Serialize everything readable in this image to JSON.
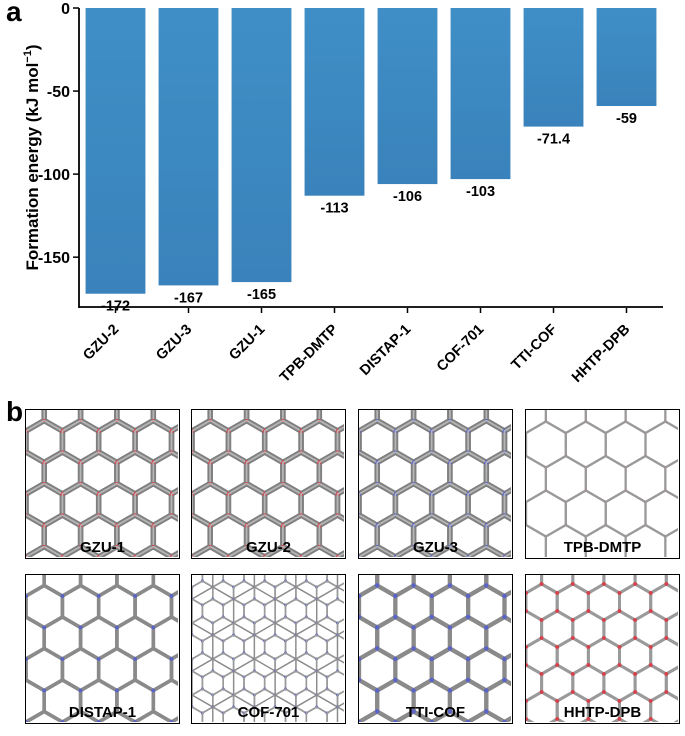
{
  "panels": {
    "a": "a",
    "b": "b"
  },
  "chart_data": {
    "type": "bar",
    "title": "",
    "xlabel": "",
    "ylabel": "Formation energy (kJ mol",
    "ylabel_sup": "−1",
    "ylabel_close": ")",
    "categories": [
      "GZU-2",
      "GZU-3",
      "GZU-1",
      "TPB-DMTP",
      "DISTAP-1",
      "COF-701",
      "TTI-COF",
      "HHTP-DPB"
    ],
    "values": [
      -172,
      -167,
      -165,
      -113,
      -106,
      -103,
      -71.4,
      -59
    ],
    "data_labels": [
      "-172",
      "-167",
      "-165",
      "-113",
      "-106",
      "-103",
      "-71.4",
      "-59"
    ],
    "ylim": [
      -180,
      0
    ],
    "yticks": [
      0,
      -50,
      -100,
      -150
    ],
    "ytick_labels": [
      "0",
      "-50",
      "-100",
      "-150"
    ],
    "grid": false,
    "bar_color": "#3f8fc6"
  },
  "structures": [
    {
      "name": "GZU-1",
      "label": "GZU-1",
      "style": "dense",
      "atom_color": "#d6414b"
    },
    {
      "name": "GZU-2",
      "label": "GZU-2",
      "style": "dense",
      "atom_color": "#d6414b"
    },
    {
      "name": "GZU-3",
      "label": "GZU-3",
      "style": "dense",
      "atom_color": "#5a63c8"
    },
    {
      "name": "TPB-DMTP",
      "label": "TPB-DMTP",
      "style": "open",
      "atom_color": "#c94a4a"
    },
    {
      "name": "DISTAP-1",
      "label": "DISTAP-1",
      "style": "medium",
      "atom_color": "#5a63c8"
    },
    {
      "name": "COF-701",
      "label": "COF-701",
      "style": "kagome",
      "atom_color": "#5a63c8"
    },
    {
      "name": "TTI-COF",
      "label": "TTI-COF",
      "style": "blue",
      "atom_color": "#5a63c8"
    },
    {
      "name": "HHTP-DPB",
      "label": "HHTP-DPB",
      "style": "red",
      "atom_color": "#d6414b"
    }
  ]
}
